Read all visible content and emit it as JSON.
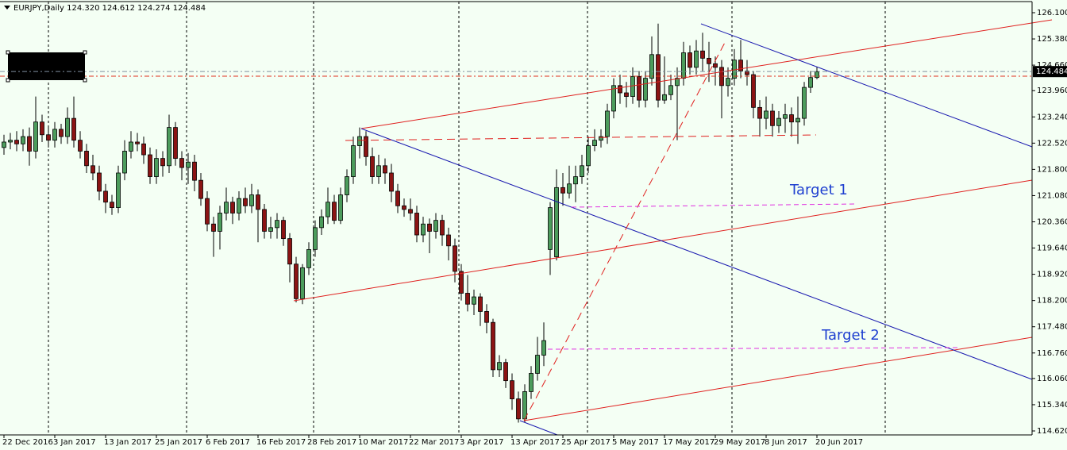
{
  "chart_data": {
    "type": "candlestick",
    "title": "EURJPY,Daily  124.320 124.612 124.274 124.484",
    "up_color": "#4c9c5c",
    "down_color": "#8b1414",
    "last_price": 124.484,
    "annotations": [
      "Target 1",
      "Target 2"
    ],
    "ylim": [
      114.511,
      126.405
    ],
    "yticks": [
      {
        "value": 126.1,
        "label": "126.100"
      },
      {
        "value": 125.38,
        "label": "125.380"
      },
      {
        "value": 124.66,
        "label": "124.660"
      },
      {
        "value": 123.96,
        "label": "123.960"
      },
      {
        "value": 123.24,
        "label": "123.240"
      },
      {
        "value": 122.52,
        "label": "122.520"
      },
      {
        "value": 121.8,
        "label": "121.800"
      },
      {
        "value": 121.08,
        "label": "121.080"
      },
      {
        "value": 120.36,
        "label": "120.360"
      },
      {
        "value": 119.64,
        "label": "119.640"
      },
      {
        "value": 118.92,
        "label": "118.920"
      },
      {
        "value": 118.2,
        "label": "118.200"
      },
      {
        "value": 117.48,
        "label": "117.480"
      },
      {
        "value": 116.76,
        "label": "116.760"
      },
      {
        "value": 116.06,
        "label": "116.060"
      },
      {
        "value": 115.34,
        "label": "115.340"
      },
      {
        "value": 114.62,
        "label": "114.620"
      }
    ],
    "categories": [
      "22 Dec 2016",
      null,
      null,
      null,
      null,
      null,
      null,
      null,
      "3 Jan 2017",
      null,
      null,
      null,
      null,
      null,
      null,
      null,
      "13 Jan 2017",
      null,
      null,
      null,
      null,
      null,
      null,
      null,
      "25 Jan 2017",
      null,
      null,
      null,
      null,
      null,
      null,
      null,
      "6 Feb 2017",
      null,
      null,
      null,
      null,
      null,
      null,
      null,
      "16 Feb 2017",
      null,
      null,
      null,
      null,
      null,
      null,
      null,
      "28 Feb 2017",
      null,
      null,
      null,
      null,
      null,
      null,
      null,
      "10 Mar 2017",
      null,
      null,
      null,
      null,
      null,
      null,
      null,
      "22 Mar 2017",
      null,
      null,
      null,
      null,
      null,
      null,
      null,
      "3 Apr 2017",
      null,
      null,
      null,
      null,
      null,
      null,
      null,
      "13 Apr 2017",
      null,
      null,
      null,
      null,
      null,
      null,
      null,
      "25 Apr 2017",
      null,
      null,
      null,
      null,
      null,
      null,
      null,
      "5 May 2017",
      null,
      null,
      null,
      null,
      null,
      null,
      null,
      "17 May 2017",
      null,
      null,
      null,
      null,
      null,
      null,
      null,
      "29 May 2017",
      null,
      null,
      null,
      null,
      null,
      null,
      null,
      "8 Jun 2017",
      null,
      null,
      null,
      null,
      null,
      null,
      null,
      "20 Jun 2017"
    ],
    "ohlc": [
      [
        122.4,
        122.75,
        122.2,
        122.55
      ],
      [
        122.55,
        122.8,
        122.35,
        122.6
      ],
      [
        122.6,
        122.85,
        122.3,
        122.5
      ],
      [
        122.5,
        122.9,
        122.3,
        122.7
      ],
      [
        122.7,
        122.95,
        121.9,
        122.3
      ],
      [
        122.3,
        123.8,
        122.1,
        123.1
      ],
      [
        123.1,
        123.3,
        122.55,
        122.75
      ],
      [
        122.75,
        123.0,
        122.4,
        122.6
      ],
      [
        122.6,
        123.1,
        122.4,
        122.9
      ],
      [
        122.9,
        123.05,
        122.5,
        122.7
      ],
      [
        122.7,
        123.5,
        122.5,
        123.2
      ],
      [
        123.2,
        123.8,
        122.4,
        122.6
      ],
      [
        122.6,
        122.85,
        122.1,
        122.3
      ],
      [
        122.3,
        122.5,
        121.7,
        121.9
      ],
      [
        121.9,
        122.2,
        121.5,
        121.7
      ],
      [
        121.7,
        121.9,
        120.95,
        121.2
      ],
      [
        121.2,
        121.4,
        120.6,
        120.9
      ],
      [
        120.9,
        121.1,
        120.55,
        120.75
      ],
      [
        120.75,
        121.9,
        120.6,
        121.7
      ],
      [
        121.7,
        122.6,
        121.5,
        122.3
      ],
      [
        122.3,
        122.85,
        122.1,
        122.55
      ],
      [
        122.55,
        122.8,
        122.3,
        122.5
      ],
      [
        122.5,
        122.7,
        121.95,
        122.2
      ],
      [
        122.2,
        122.4,
        121.4,
        121.6
      ],
      [
        121.6,
        122.35,
        121.4,
        122.1
      ],
      [
        122.1,
        122.3,
        121.6,
        121.9
      ],
      [
        121.9,
        123.3,
        121.7,
        122.95
      ],
      [
        122.95,
        123.1,
        121.9,
        122.1
      ],
      [
        122.1,
        122.3,
        121.5,
        121.85
      ],
      [
        121.85,
        122.25,
        121.4,
        122.0
      ],
      [
        122.0,
        122.2,
        121.2,
        121.5
      ],
      [
        121.5,
        121.7,
        120.8,
        121.0
      ],
      [
        121.0,
        121.2,
        120.1,
        120.3
      ],
      [
        120.3,
        120.5,
        119.4,
        120.1
      ],
      [
        120.1,
        120.8,
        119.6,
        120.6
      ],
      [
        120.6,
        121.3,
        120.4,
        120.9
      ],
      [
        120.9,
        121.05,
        120.3,
        120.6
      ],
      [
        120.6,
        121.2,
        120.4,
        121.0
      ],
      [
        121.0,
        121.3,
        120.6,
        120.8
      ],
      [
        120.8,
        121.4,
        120.6,
        121.1
      ],
      [
        121.1,
        121.25,
        119.8,
        120.7
      ],
      [
        120.7,
        120.85,
        119.9,
        120.1
      ],
      [
        120.1,
        120.5,
        119.9,
        120.2
      ],
      [
        120.2,
        120.6,
        119.9,
        120.4
      ],
      [
        120.4,
        120.5,
        119.7,
        119.9
      ],
      [
        119.9,
        120.05,
        118.7,
        119.2
      ],
      [
        119.2,
        119.4,
        118.15,
        118.25
      ],
      [
        118.25,
        119.2,
        118.1,
        119.1
      ],
      [
        119.1,
        119.8,
        118.9,
        119.6
      ],
      [
        119.6,
        120.4,
        119.4,
        120.2
      ],
      [
        120.2,
        120.7,
        120.0,
        120.5
      ],
      [
        120.5,
        121.3,
        120.3,
        120.9
      ],
      [
        120.9,
        121.1,
        120.3,
        120.4
      ],
      [
        120.4,
        121.3,
        120.3,
        121.1
      ],
      [
        121.1,
        121.8,
        120.9,
        121.6
      ],
      [
        121.6,
        122.7,
        121.4,
        122.45
      ],
      [
        122.45,
        122.95,
        122.1,
        122.7
      ],
      [
        122.7,
        122.85,
        121.9,
        122.15
      ],
      [
        122.15,
        122.4,
        121.4,
        121.6
      ],
      [
        121.6,
        122.2,
        121.4,
        121.9
      ],
      [
        121.9,
        122.1,
        121.4,
        121.7
      ],
      [
        121.7,
        121.95,
        120.9,
        121.2
      ],
      [
        121.2,
        121.4,
        120.6,
        120.8
      ],
      [
        120.8,
        121.0,
        120.5,
        120.7
      ],
      [
        120.7,
        121.0,
        120.4,
        120.6
      ],
      [
        120.6,
        120.8,
        119.8,
        120.0
      ],
      [
        120.0,
        120.5,
        119.8,
        120.3
      ],
      [
        120.3,
        120.45,
        119.5,
        120.1
      ],
      [
        120.1,
        120.6,
        119.9,
        120.4
      ],
      [
        120.4,
        120.55,
        119.7,
        120.0
      ],
      [
        120.0,
        120.2,
        119.3,
        119.7
      ],
      [
        119.7,
        119.9,
        118.7,
        119.0
      ],
      [
        119.0,
        119.2,
        118.2,
        118.4
      ],
      [
        118.4,
        118.9,
        117.9,
        118.1
      ],
      [
        118.1,
        118.5,
        117.8,
        118.3
      ],
      [
        118.3,
        118.4,
        117.5,
        117.9
      ],
      [
        117.9,
        118.1,
        117.3,
        117.6
      ],
      [
        117.6,
        117.7,
        116.1,
        116.3
      ],
      [
        116.3,
        116.7,
        116.1,
        116.5
      ],
      [
        116.5,
        116.6,
        115.8,
        116.0
      ],
      [
        116.0,
        116.2,
        115.2,
        115.5
      ],
      [
        115.5,
        115.7,
        114.85,
        114.95
      ],
      [
        114.95,
        115.9,
        114.85,
        115.7
      ],
      [
        115.7,
        116.4,
        115.5,
        116.2
      ],
      [
        116.2,
        117.2,
        116.0,
        116.7
      ],
      [
        116.7,
        117.6,
        116.4,
        117.1
      ],
      [
        119.6,
        120.9,
        118.9,
        120.75
      ],
      [
        119.4,
        121.8,
        119.3,
        121.3
      ],
      [
        121.3,
        121.7,
        120.8,
        121.15
      ],
      [
        121.15,
        121.9,
        121.0,
        121.4
      ],
      [
        121.4,
        121.9,
        120.9,
        121.6
      ],
      [
        121.6,
        122.2,
        121.4,
        121.9
      ],
      [
        121.9,
        122.7,
        121.7,
        122.45
      ],
      [
        122.45,
        122.9,
        122.3,
        122.6
      ],
      [
        122.6,
        122.9,
        122.4,
        122.7
      ],
      [
        122.7,
        123.6,
        122.5,
        123.4
      ],
      [
        123.4,
        124.3,
        123.2,
        124.1
      ],
      [
        124.1,
        124.4,
        123.6,
        123.9
      ],
      [
        123.9,
        124.2,
        123.5,
        123.8
      ],
      [
        123.8,
        124.6,
        123.6,
        124.35
      ],
      [
        124.35,
        124.5,
        123.5,
        123.7
      ],
      [
        123.7,
        124.5,
        123.5,
        124.3
      ],
      [
        124.3,
        125.45,
        124.1,
        124.95
      ],
      [
        124.95,
        125.8,
        123.5,
        123.7
      ],
      [
        123.7,
        124.9,
        123.6,
        123.85
      ],
      [
        123.85,
        124.4,
        123.7,
        124.1
      ],
      [
        124.1,
        124.6,
        122.6,
        124.3
      ],
      [
        124.3,
        125.3,
        124.1,
        125.0
      ],
      [
        125.0,
        125.2,
        124.4,
        124.6
      ],
      [
        124.6,
        125.35,
        124.4,
        125.05
      ],
      [
        125.05,
        125.55,
        124.5,
        124.85
      ],
      [
        124.85,
        125.3,
        124.2,
        124.7
      ],
      [
        124.7,
        124.9,
        124.1,
        124.6
      ],
      [
        124.6,
        124.8,
        123.2,
        124.1
      ],
      [
        124.1,
        124.6,
        123.8,
        124.3
      ],
      [
        124.3,
        125.1,
        124.1,
        124.8
      ],
      [
        124.8,
        125.35,
        124.3,
        124.5
      ],
      [
        124.5,
        124.8,
        124.1,
        124.4
      ],
      [
        124.4,
        124.5,
        123.2,
        123.5
      ],
      [
        123.5,
        123.7,
        122.7,
        123.2
      ],
      [
        123.2,
        123.8,
        122.9,
        123.4
      ],
      [
        123.4,
        123.6,
        122.7,
        123.0
      ],
      [
        123.0,
        123.4,
        122.8,
        123.2
      ],
      [
        123.2,
        123.6,
        122.8,
        123.3
      ],
      [
        123.3,
        123.5,
        122.7,
        123.1
      ],
      [
        123.1,
        123.8,
        122.5,
        123.2
      ],
      [
        123.2,
        124.2,
        123.0,
        124.05
      ],
      [
        124.05,
        124.5,
        123.9,
        124.32
      ],
      [
        124.32,
        124.612,
        124.274,
        124.484
      ]
    ]
  }
}
